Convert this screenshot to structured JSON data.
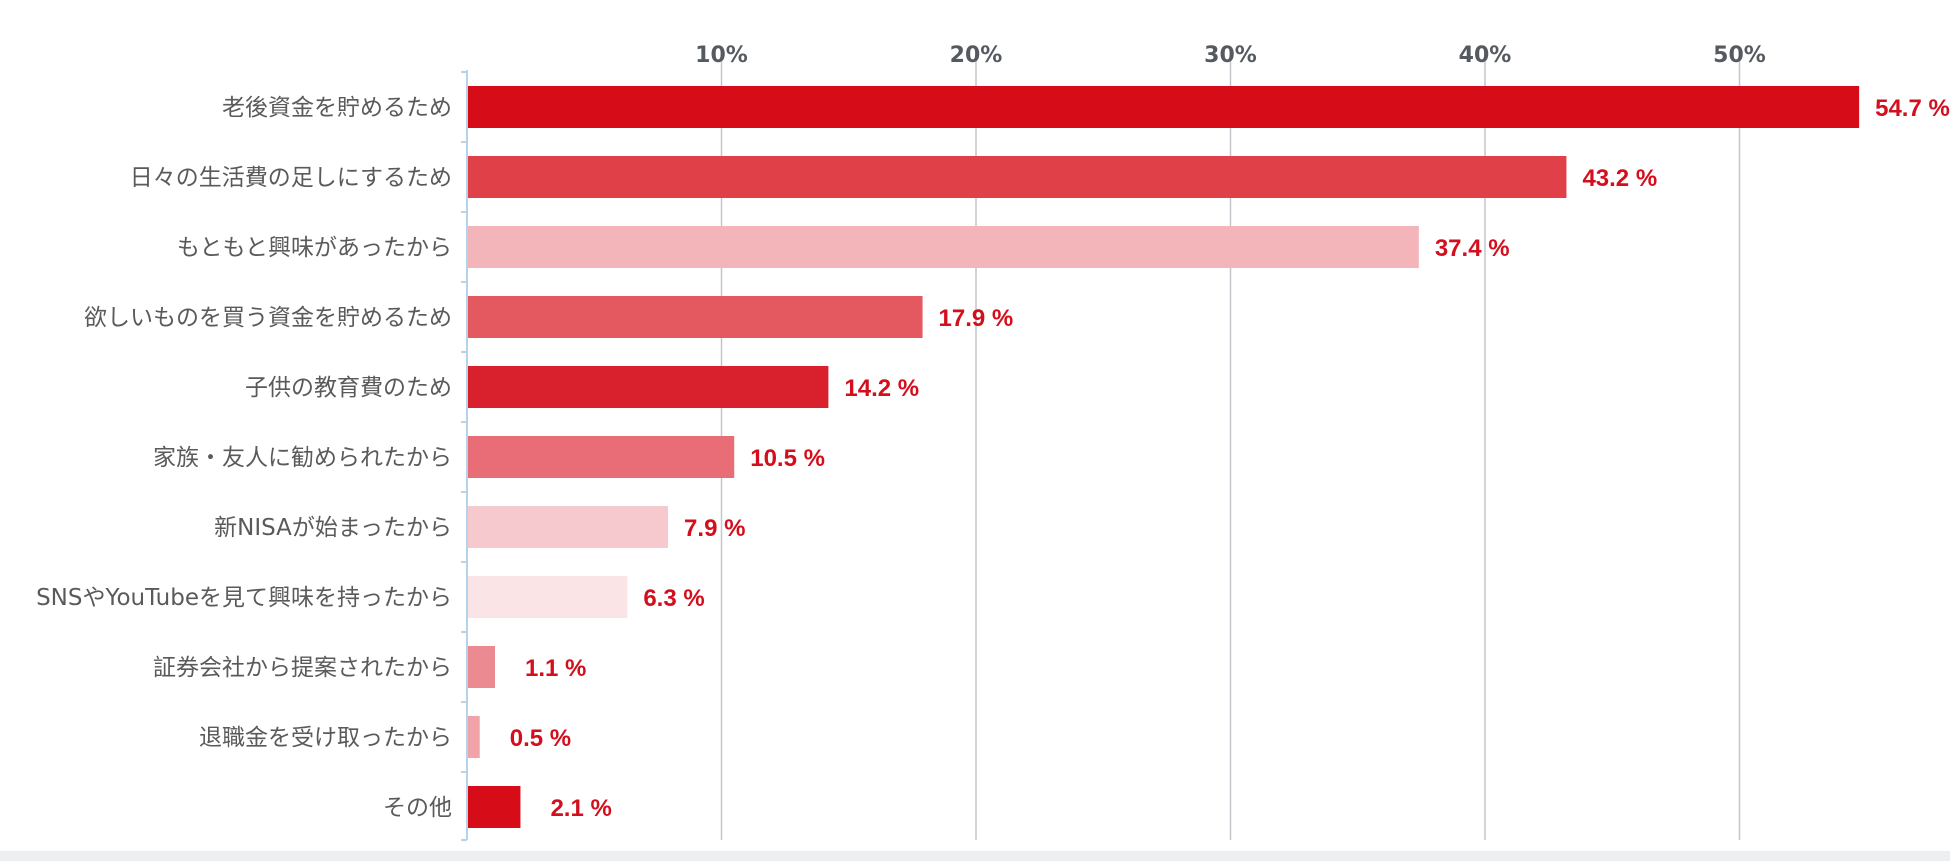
{
  "chart_data": {
    "type": "bar",
    "orientation": "horizontal",
    "categories": [
      "老後資金を貯めるため",
      "日々の生活費の足しにするため",
      "もともと興味があったから",
      "欲しいものを買う資金を貯めるため",
      "子供の教育費のため",
      "家族・友人に勧められたから",
      "新NISAが始まったから",
      "SNSやYouTubeを見て興味を持ったから",
      "証券会社から提案されたから",
      "退職金を受け取ったから",
      "その他"
    ],
    "values": [
      54.7,
      43.2,
      37.4,
      17.9,
      14.2,
      10.5,
      7.9,
      6.3,
      1.1,
      0.5,
      2.1
    ],
    "value_labels": [
      "54.7 %",
      "43.2 %",
      "37.4 %",
      "17.9 %",
      "14.2 %",
      "10.5 %",
      "7.9 %",
      "6.3 %",
      "1.1 %",
      "0.5 %",
      "2.1 %"
    ],
    "bar_colors": [
      "#d70c19",
      "#e04048",
      "#f3b5b9",
      "#e45860",
      "#d9202d",
      "#e96d76",
      "#f6c9ce",
      "#fae4e6",
      "#ec8a91",
      "#f2a3a9",
      "#d70c19"
    ],
    "xticks": [
      10,
      20,
      30,
      40,
      50
    ],
    "xtick_labels": [
      "10%",
      "20%",
      "30%",
      "40%",
      "50%"
    ],
    "xlim": [
      0,
      56.5
    ],
    "grid": true,
    "axis_position": "top",
    "label_color": "#d30e1d"
  }
}
